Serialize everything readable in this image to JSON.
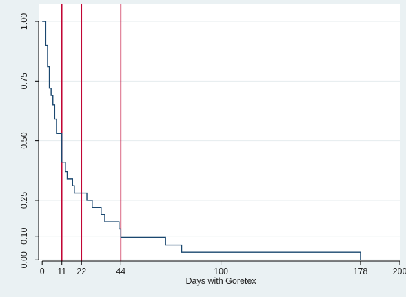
{
  "chart_data": {
    "type": "line",
    "step": true,
    "title": "",
    "xlabel": "Days with Goretex",
    "ylabel": "",
    "xlim": [
      -2,
      200
    ],
    "ylim": [
      -0.005,
      1.0
    ],
    "xticks": [
      {
        "value": 0,
        "label": "0"
      },
      {
        "value": 11,
        "label": "11"
      },
      {
        "value": 22,
        "label": "22"
      },
      {
        "value": 44,
        "label": "44"
      },
      {
        "value": 100,
        "label": "100"
      },
      {
        "value": 178,
        "label": "178"
      },
      {
        "value": 200,
        "label": "200"
      }
    ],
    "yticks": [
      {
        "value": 0,
        "label": "0.00"
      },
      {
        "value": 0.1,
        "label": "0.10"
      },
      {
        "value": 0.25,
        "label": "0.25"
      },
      {
        "value": 0.5,
        "label": "0.50"
      },
      {
        "value": 0.75,
        "label": "0.75"
      },
      {
        "value": 1.0,
        "label": "1.00"
      }
    ],
    "grid": true,
    "reference_lines_x": [
      11,
      22,
      44
    ],
    "series": [
      {
        "x": [
          0,
          2,
          3,
          4,
          5,
          6,
          7,
          8,
          9,
          11,
          13,
          14,
          17,
          18,
          22,
          25,
          28,
          33,
          35,
          43,
          44,
          69,
          78,
          178
        ],
        "y": [
          1.0,
          0.9,
          0.81,
          0.72,
          0.69,
          0.65,
          0.59,
          0.53,
          0.53,
          0.41,
          0.37,
          0.34,
          0.31,
          0.28,
          0.28,
          0.25,
          0.22,
          0.19,
          0.16,
          0.13,
          0.095,
          0.063,
          0.032,
          0.0
        ]
      }
    ],
    "colors": {
      "outer_background": "#eaf1f3",
      "plot_background": "#ffffff",
      "grid": "#e4ebee",
      "line": "#1a476f",
      "reference": "#c10534",
      "axis": "#000000"
    }
  }
}
